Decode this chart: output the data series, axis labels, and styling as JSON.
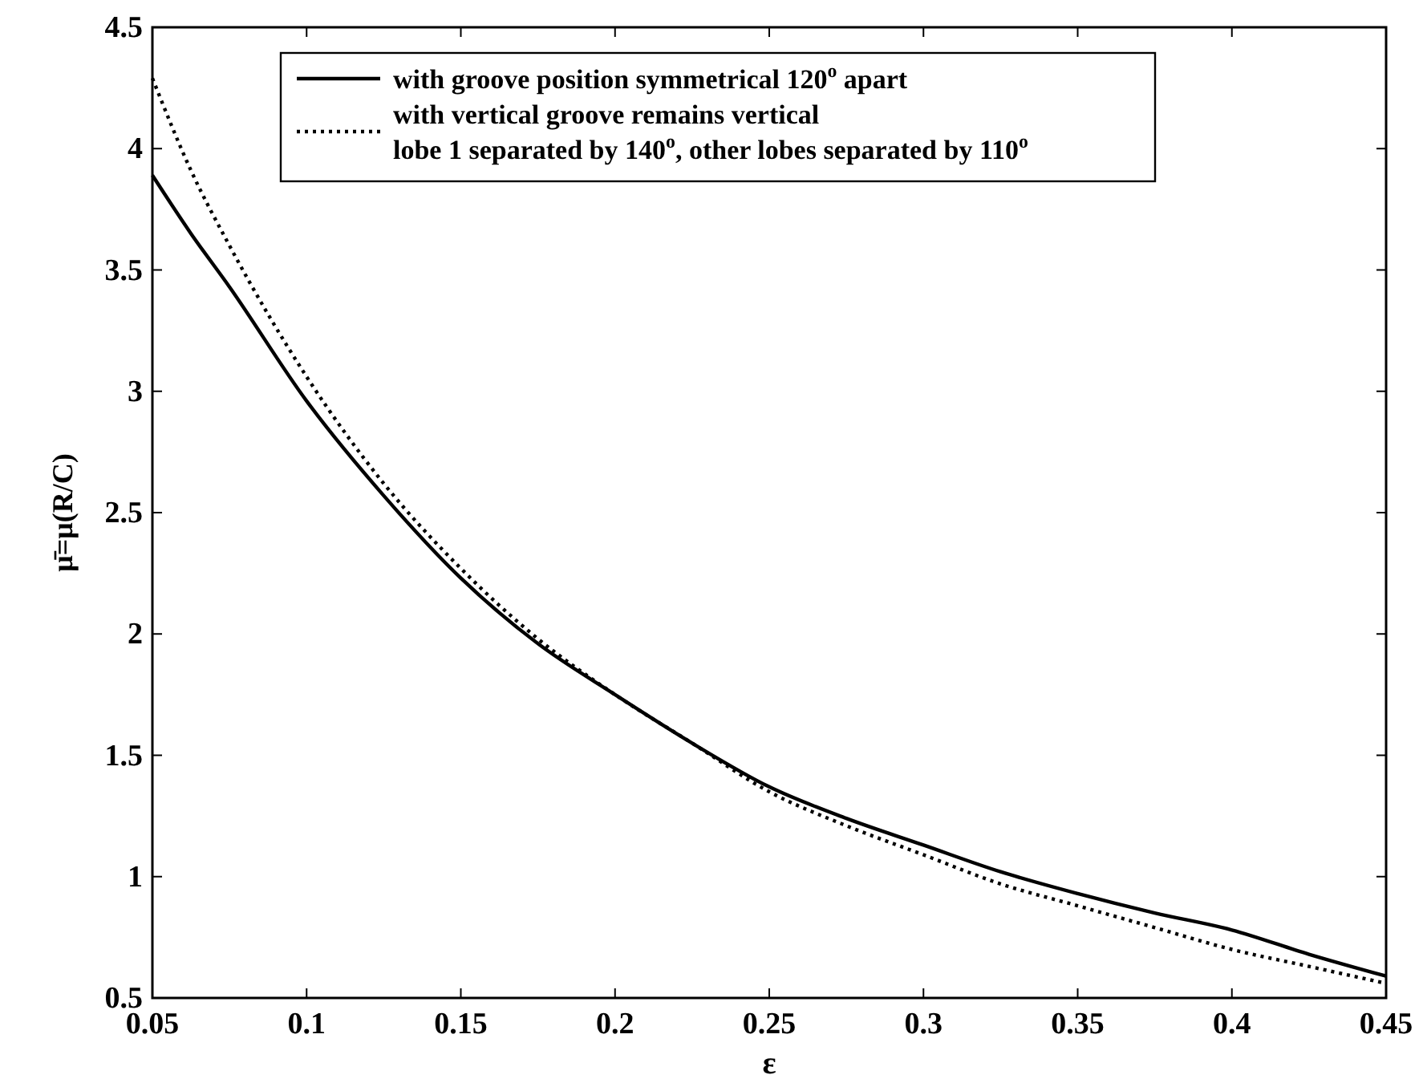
{
  "chart_data": {
    "type": "line",
    "xlabel": "ε",
    "ylabel": "μ̄=μ(R/C)",
    "x": [
      0.05,
      0.0625,
      0.075,
      0.1,
      0.125,
      0.15,
      0.175,
      0.2,
      0.225,
      0.25,
      0.275,
      0.3,
      0.325,
      0.35,
      0.375,
      0.4,
      0.425,
      0.45
    ],
    "series": [
      {
        "name": "with groove position symmetrical 120$^{o}$ apart",
        "color": "#000000",
        "line_style": "solid",
        "values": [
          3.89,
          3.65,
          3.43,
          2.96,
          2.57,
          2.23,
          1.96,
          1.75,
          1.55,
          1.37,
          1.24,
          1.13,
          1.02,
          0.93,
          0.85,
          0.78,
          0.68,
          0.59
        ]
      },
      {
        "name": "with vertical groove remains vertical\nlobe 1 separated by 140$^{o}$, other lobes separated by 110$^{o}$",
        "color": "#000000",
        "line_style": "dotted",
        "values": [
          4.29,
          3.91,
          3.6,
          3.06,
          2.62,
          2.27,
          1.98,
          1.75,
          1.55,
          1.35,
          1.21,
          1.09,
          0.97,
          0.88,
          0.79,
          0.7,
          0.63,
          0.56
        ]
      }
    ],
    "xlim": [
      0.05,
      0.45
    ],
    "xticks": [
      0.05,
      0.1,
      0.15,
      0.2,
      0.25,
      0.3,
      0.35,
      0.4,
      0.45
    ],
    "ylim": [
      0.5,
      4.5
    ],
    "yticks": [
      0.5,
      1,
      1.5,
      2,
      2.5,
      3,
      3.5,
      4,
      4.5
    ],
    "grid": false,
    "legend": "top",
    "marker": "none"
  }
}
